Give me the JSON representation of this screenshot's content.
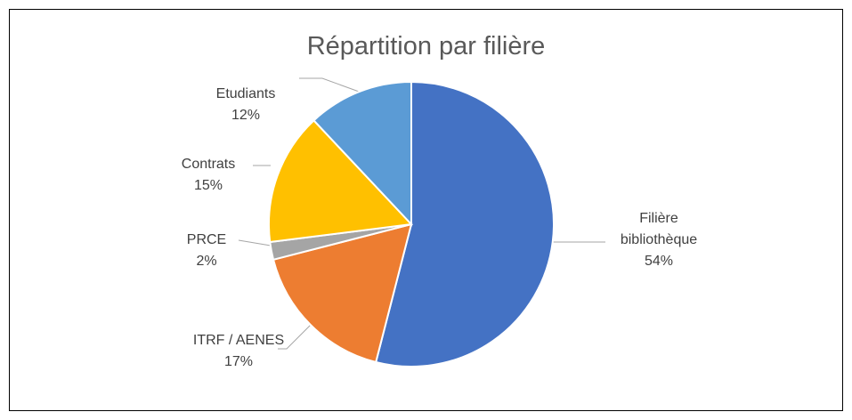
{
  "chart_data": {
    "type": "pie",
    "title": "Répartition par filière",
    "categories": [
      "Filière bibliothèque",
      "ITRF / AENES",
      "PRCE",
      "Contrats",
      "Etudiants"
    ],
    "values": [
      54,
      17,
      2,
      15,
      12
    ],
    "value_labels": [
      "54%",
      "17%",
      "2%",
      "15%",
      "12%"
    ],
    "colors": [
      "#4472c4",
      "#ed7d31",
      "#a5a5a5",
      "#ffc000",
      "#5b9bd5"
    ]
  }
}
